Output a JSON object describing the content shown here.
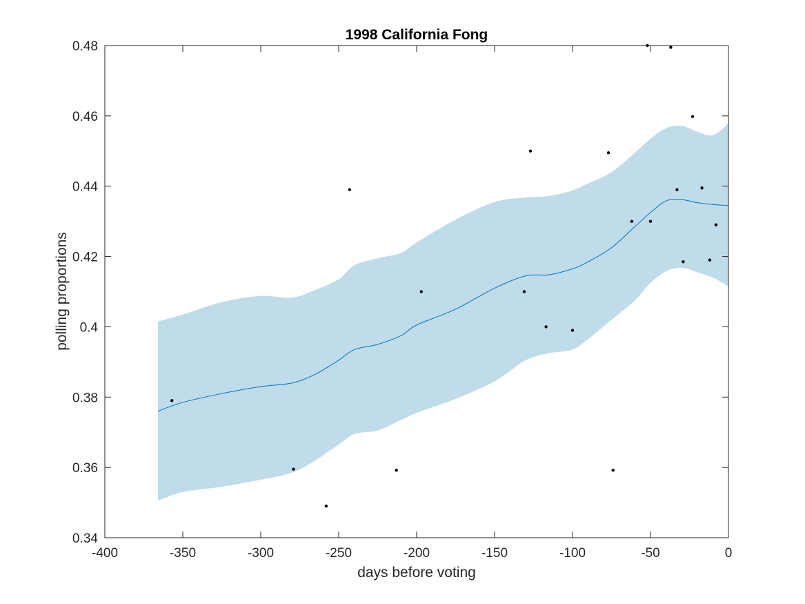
{
  "chart_data": {
    "type": "scatter",
    "title": "1998 California Fong",
    "xlabel": "days before voting",
    "ylabel": "polling proportions",
    "xlim": [
      -400,
      0
    ],
    "ylim": [
      0.34,
      0.48
    ],
    "xticks": [
      -400,
      -350,
      -300,
      -250,
      -200,
      -150,
      -100,
      -50,
      0
    ],
    "xtick_labels": [
      "-400",
      "-350",
      "-300",
      "-250",
      "-200",
      "-150",
      "-100",
      "-50",
      "0"
    ],
    "yticks": [
      0.34,
      0.36,
      0.38,
      0.4,
      0.42,
      0.44,
      0.46,
      0.48
    ],
    "ytick_labels": [
      "0.34",
      "0.36",
      "0.38",
      "0.4",
      "0.42",
      "0.44",
      "0.46",
      "0.48"
    ],
    "grid": false,
    "colors": {
      "band": "#c0dcea",
      "line": "#0072bd",
      "points": "#000000",
      "axes": "#262626"
    },
    "trend": {
      "x": [
        -366,
        -350,
        -325,
        -300,
        -280,
        -265,
        -250,
        -240,
        -225,
        -210,
        -200,
        -175,
        -150,
        -130,
        -115,
        -100,
        -90,
        -75,
        -60,
        -50,
        -40,
        -30,
        -20,
        -10,
        0
      ],
      "y": [
        0.376,
        0.3785,
        0.381,
        0.383,
        0.384,
        0.3865,
        0.3905,
        0.3935,
        0.395,
        0.3975,
        0.4005,
        0.405,
        0.411,
        0.4145,
        0.4148,
        0.4165,
        0.4185,
        0.4225,
        0.4285,
        0.4325,
        0.4358,
        0.4362,
        0.4353,
        0.4348,
        0.4345
      ]
    },
    "band": {
      "x": [
        -366,
        -350,
        -325,
        -300,
        -280,
        -265,
        -250,
        -240,
        -225,
        -210,
        -200,
        -175,
        -150,
        -130,
        -115,
        -100,
        -90,
        -75,
        -60,
        -50,
        -40,
        -30,
        -20,
        -10,
        0
      ],
      "upper": [
        0.4015,
        0.4035,
        0.407,
        0.4088,
        0.4083,
        0.4105,
        0.4135,
        0.4175,
        0.4195,
        0.421,
        0.424,
        0.4305,
        0.4355,
        0.4368,
        0.4372,
        0.4388,
        0.4408,
        0.444,
        0.4495,
        0.4535,
        0.4565,
        0.4572,
        0.4555,
        0.4545,
        0.4578
      ],
      "lower": [
        0.3505,
        0.353,
        0.3545,
        0.3565,
        0.3585,
        0.362,
        0.3665,
        0.3695,
        0.3705,
        0.3735,
        0.3755,
        0.3795,
        0.3845,
        0.3905,
        0.3925,
        0.3935,
        0.3965,
        0.402,
        0.4075,
        0.4125,
        0.4158,
        0.4168,
        0.4155,
        0.414,
        0.4115
      ]
    },
    "points": {
      "x": [
        -357,
        -279,
        -258,
        -243,
        -213,
        -197,
        -131,
        -127,
        -117,
        -100,
        -77,
        -74,
        -62,
        -52,
        -50,
        -37,
        -33,
        -29,
        -23,
        -17,
        -12,
        -8
      ],
      "y": [
        0.379,
        0.3595,
        0.349,
        0.439,
        0.3592,
        0.41,
        0.41,
        0.45,
        0.4,
        0.399,
        0.4495,
        0.3592,
        0.43,
        0.48,
        0.43,
        0.4795,
        0.439,
        0.4185,
        0.4598,
        0.4395,
        0.419,
        0.429
      ]
    }
  }
}
